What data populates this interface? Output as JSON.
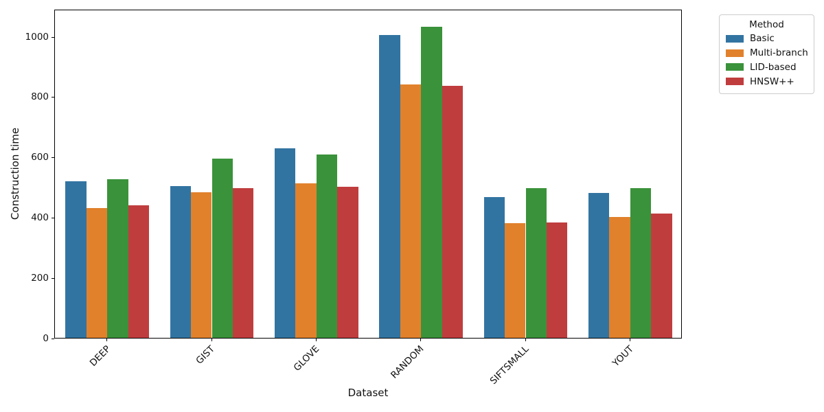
{
  "chart_data": {
    "type": "bar",
    "title": "",
    "xlabel": "Dataset",
    "ylabel": "Construction time",
    "categories": [
      "DEEP",
      "GIST",
      "GLOVE",
      "RANDOM",
      "SIFTSMALL",
      "YOUT"
    ],
    "series": [
      {
        "name": "Basic",
        "color": "#3274a1",
        "values": [
          518,
          504,
          628,
          1003,
          467,
          480
        ]
      },
      {
        "name": "Multi-branch",
        "color": "#e1812c",
        "values": [
          430,
          483,
          513,
          840,
          379,
          401
        ]
      },
      {
        "name": "LID-based",
        "color": "#3a923a",
        "values": [
          526,
          594,
          608,
          1032,
          497,
          495
        ]
      },
      {
        "name": "HNSW++",
        "color": "#c03d3e",
        "values": [
          440,
          497,
          500,
          835,
          383,
          411
        ]
      }
    ],
    "ylim": [
      0,
      1090
    ],
    "yticks": [
      0,
      200,
      400,
      600,
      800,
      1000
    ],
    "grid": false,
    "bar_group_fraction": 0.8,
    "legend": {
      "title": "Method",
      "position": "upper-right-outside"
    }
  }
}
